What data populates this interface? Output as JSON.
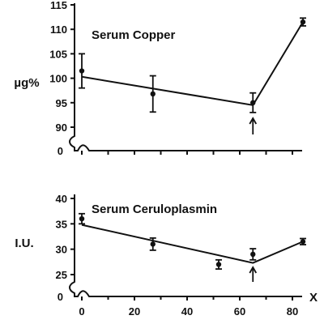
{
  "chart_data": [
    {
      "type": "line",
      "title": "Serum Copper",
      "ylabel": "µg%",
      "xlabel": "",
      "ylim": [
        90,
        115
      ],
      "y_ticks": [
        "115",
        "110",
        "105",
        "100",
        "95",
        "90"
      ],
      "y_break_label": "0",
      "x": [
        0,
        27,
        65,
        84
      ],
      "points": [
        {
          "x": 0,
          "y": 101.5,
          "err": 3.5
        },
        {
          "x": 27,
          "y": 96.8,
          "err": 3.7
        },
        {
          "x": 65,
          "y": 95.0,
          "err": 2.0
        },
        {
          "x": 84,
          "y": 111.5,
          "err": 0.8
        }
      ],
      "trend": [
        {
          "x": 0,
          "y": 100.3
        },
        {
          "x": 65,
          "y": 94.5
        },
        {
          "x": 84,
          "y": 111.5
        }
      ],
      "arrow_x": 65
    },
    {
      "type": "line",
      "title": "Serum Ceruloplasmin",
      "ylabel": "I.U.",
      "xlabel": "X",
      "ylim": [
        25,
        40
      ],
      "y_ticks": [
        "40",
        "35",
        "30",
        "25"
      ],
      "y_break_label": "0",
      "x_ticks": [
        "0",
        "20",
        "40",
        "60",
        "80"
      ],
      "x_tick_values": [
        0,
        20,
        40,
        60,
        80
      ],
      "x": [
        0,
        27,
        52,
        65,
        84
      ],
      "points": [
        {
          "x": 0,
          "y": 36.0,
          "err": 1.0
        },
        {
          "x": 27,
          "y": 31.0,
          "err": 1.2
        },
        {
          "x": 52,
          "y": 27.0,
          "err": 0.9
        },
        {
          "x": 65,
          "y": 29.0,
          "err": 1.1
        },
        {
          "x": 84,
          "y": 31.5,
          "err": 0.6
        }
      ],
      "trend": [
        {
          "x": 0,
          "y": 34.8
        },
        {
          "x": 65,
          "y": 27.3
        },
        {
          "x": 84,
          "y": 31.5
        }
      ],
      "arrow_x": 65
    }
  ]
}
